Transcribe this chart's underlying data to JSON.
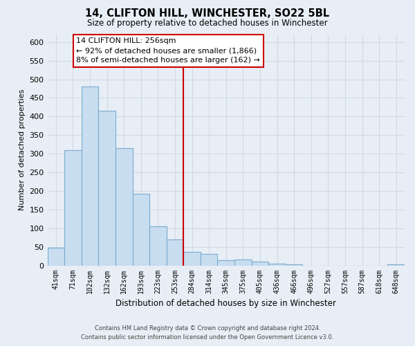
{
  "title": "14, CLIFTON HILL, WINCHESTER, SO22 5BL",
  "subtitle": "Size of property relative to detached houses in Winchester",
  "xlabel": "Distribution of detached houses by size in Winchester",
  "ylabel": "Number of detached properties",
  "bar_labels": [
    "41sqm",
    "71sqm",
    "102sqm",
    "132sqm",
    "162sqm",
    "193sqm",
    "223sqm",
    "253sqm",
    "284sqm",
    "314sqm",
    "345sqm",
    "375sqm",
    "405sqm",
    "436sqm",
    "466sqm",
    "496sqm",
    "527sqm",
    "557sqm",
    "587sqm",
    "618sqm",
    "648sqm"
  ],
  "bar_values": [
    47,
    310,
    480,
    415,
    315,
    193,
    105,
    70,
    37,
    31,
    14,
    15,
    10,
    5,
    2,
    0,
    0,
    0,
    0,
    0,
    2
  ],
  "bar_color": "#c8ddf0",
  "bar_edge_color": "#7aabcf",
  "vline_color": "#cc0000",
  "ylim": [
    0,
    620
  ],
  "yticks": [
    0,
    50,
    100,
    150,
    200,
    250,
    300,
    350,
    400,
    450,
    500,
    550,
    600
  ],
  "annotation_title": "14 CLIFTON HILL: 256sqm",
  "annotation_line1": "← 92% of detached houses are smaller (1,866)",
  "annotation_line2": "8% of semi-detached houses are larger (162) →",
  "annotation_box_facecolor": "#ffffff",
  "annotation_box_edgecolor": "#cc0000",
  "footer1": "Contains HM Land Registry data © Crown copyright and database right 2024.",
  "footer2": "Contains public sector information licensed under the Open Government Licence v3.0.",
  "background_color": "#e8eef5",
  "grid_color": "#d0dae5"
}
